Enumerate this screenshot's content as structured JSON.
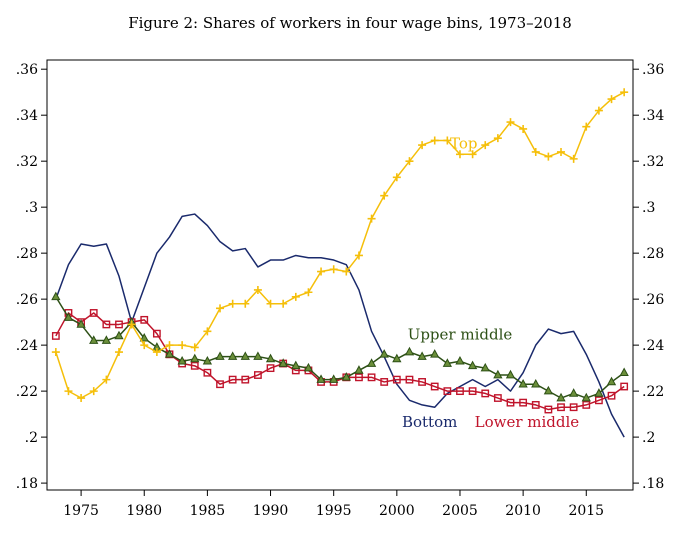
{
  "chart_data": {
    "type": "line",
    "title": "Figure 2: Shares of workers in four wage bins, 1973–2018",
    "xlabel": "",
    "ylabel": "",
    "xlim": [
      1972.3,
      2018.7
    ],
    "ylim": [
      0.177,
      0.364
    ],
    "x_ticks": [
      1975,
      1980,
      1985,
      1990,
      1995,
      2000,
      2005,
      2010,
      2015
    ],
    "y_ticks": [
      0.18,
      0.2,
      0.22,
      0.24,
      0.26,
      0.28,
      0.3,
      0.32,
      0.34,
      0.36
    ],
    "y_tick_labels": [
      ".18",
      ".2",
      ".22",
      ".24",
      ".26",
      ".28",
      ".3",
      ".32",
      ".34",
      ".36"
    ],
    "grid": false,
    "legend": "none",
    "x": [
      1973,
      1974,
      1975,
      1976,
      1977,
      1978,
      1979,
      1980,
      1981,
      1982,
      1983,
      1984,
      1985,
      1986,
      1987,
      1988,
      1989,
      1990,
      1991,
      1992,
      1993,
      1994,
      1995,
      1996,
      1997,
      1998,
      1999,
      2000,
      2001,
      2002,
      2003,
      2004,
      2005,
      2006,
      2007,
      2008,
      2009,
      2010,
      2011,
      2012,
      2013,
      2014,
      2015,
      2016,
      2017,
      2018
    ],
    "series": [
      {
        "name": "Bottom",
        "color": "#1a2a6c",
        "marker": "none",
        "values": [
          0.26,
          0.275,
          0.284,
          0.283,
          0.284,
          0.27,
          0.25,
          0.265,
          0.28,
          0.287,
          0.296,
          0.297,
          0.292,
          0.285,
          0.281,
          0.282,
          0.274,
          0.277,
          0.277,
          0.279,
          0.278,
          0.278,
          0.277,
          0.275,
          0.264,
          0.246,
          0.235,
          0.223,
          0.216,
          0.214,
          0.213,
          0.219,
          0.222,
          0.225,
          0.222,
          0.225,
          0.22,
          0.228,
          0.24,
          0.247,
          0.245,
          0.246,
          0.236,
          0.224,
          0.21,
          0.2
        ]
      },
      {
        "name": "Lower middle",
        "color": "#c0142b",
        "marker": "square",
        "values": [
          0.244,
          0.254,
          0.25,
          0.254,
          0.249,
          0.249,
          0.25,
          0.251,
          0.245,
          0.236,
          0.232,
          0.231,
          0.228,
          0.223,
          0.225,
          0.225,
          0.227,
          0.23,
          0.232,
          0.229,
          0.229,
          0.224,
          0.224,
          0.226,
          0.226,
          0.226,
          0.224,
          0.225,
          0.225,
          0.224,
          0.222,
          0.22,
          0.22,
          0.22,
          0.219,
          0.217,
          0.215,
          0.215,
          0.214,
          0.212,
          0.213,
          0.213,
          0.214,
          0.216,
          0.218,
          0.222
        ]
      },
      {
        "name": "Upper middle",
        "color": "#2d5016",
        "marker": "triangle",
        "values": [
          0.261,
          0.252,
          0.249,
          0.242,
          0.242,
          0.244,
          0.25,
          0.243,
          0.239,
          0.236,
          0.233,
          0.234,
          0.233,
          0.235,
          0.235,
          0.235,
          0.235,
          0.234,
          0.232,
          0.231,
          0.23,
          0.225,
          0.225,
          0.226,
          0.229,
          0.232,
          0.236,
          0.234,
          0.237,
          0.235,
          0.236,
          0.232,
          0.233,
          0.231,
          0.23,
          0.227,
          0.227,
          0.223,
          0.223,
          0.22,
          0.217,
          0.219,
          0.217,
          0.219,
          0.224,
          0.228
        ]
      },
      {
        "name": "Top",
        "color": "#f5bf0a",
        "marker": "plus",
        "values": [
          0.237,
          0.22,
          0.217,
          0.22,
          0.225,
          0.237,
          0.249,
          0.24,
          0.237,
          0.24,
          0.24,
          0.239,
          0.246,
          0.256,
          0.258,
          0.258,
          0.264,
          0.258,
          0.258,
          0.261,
          0.263,
          0.272,
          0.273,
          0.272,
          0.279,
          0.295,
          0.305,
          0.313,
          0.32,
          0.327,
          0.329,
          0.329,
          0.323,
          0.323,
          0.327,
          0.33,
          0.337,
          0.334,
          0.324,
          0.322,
          0.324,
          0.321,
          0.335,
          0.342,
          0.347,
          0.35
        ]
      }
    ],
    "annotations": [
      {
        "text": "Top",
        "x": 2005.3,
        "y": 0.3255,
        "color": "#f5bf0a"
      },
      {
        "text": "Upper middle",
        "x": 2005.0,
        "y": 0.2425,
        "color": "#2d5016"
      },
      {
        "text": "Bottom",
        "x": 2002.6,
        "y": 0.2045,
        "color": "#1a2a6c"
      },
      {
        "text": "Lower middle",
        "x": 2010.3,
        "y": 0.2045,
        "color": "#c0142b"
      }
    ]
  }
}
